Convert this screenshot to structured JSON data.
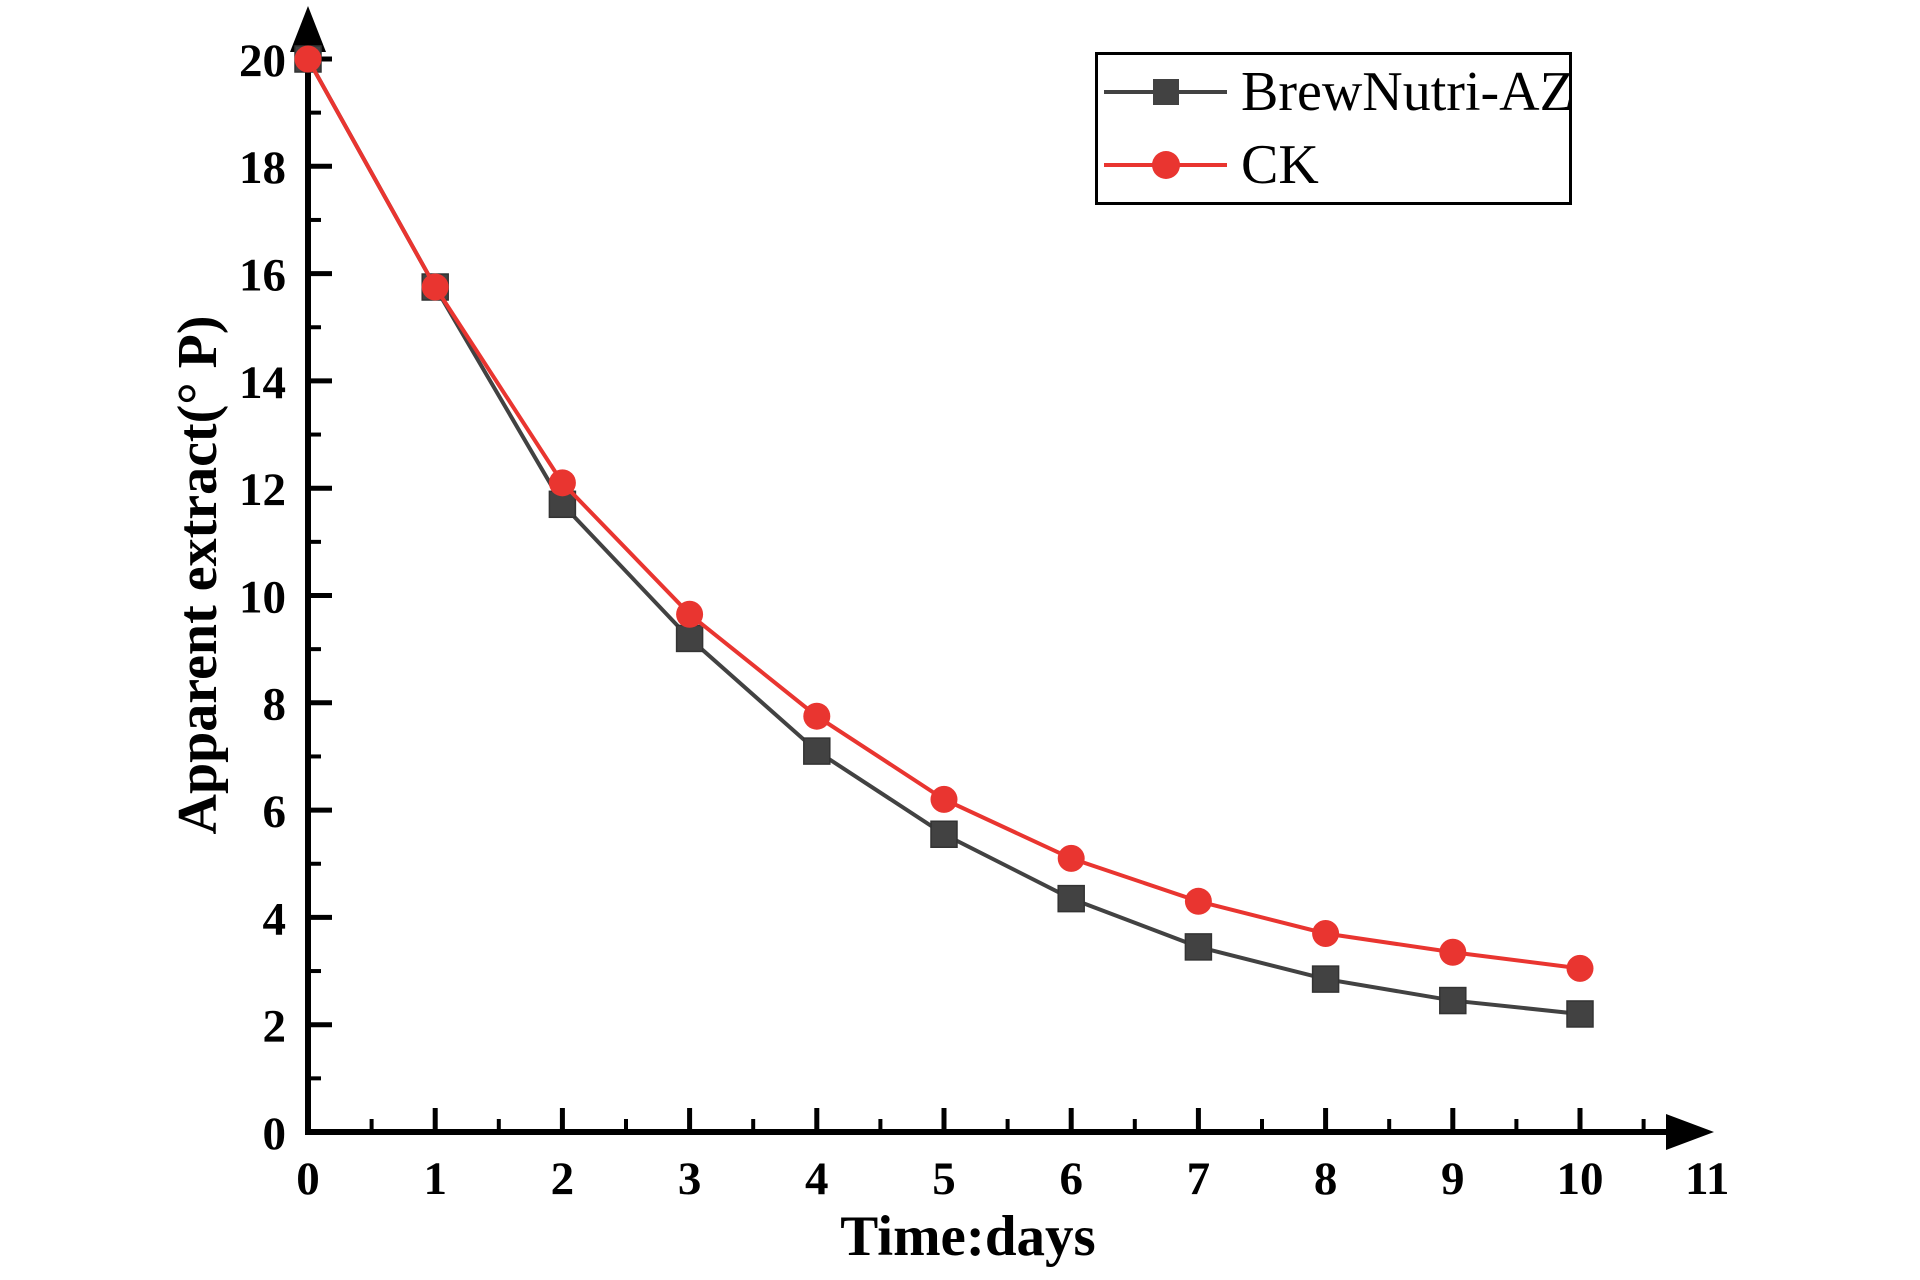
{
  "chart_data": {
    "type": "line",
    "title": "",
    "xlabel": "Time:days",
    "ylabel": "Apparent extract(° P)",
    "x": [
      0,
      1,
      2,
      3,
      4,
      5,
      6,
      7,
      8,
      9,
      10
    ],
    "series": [
      {
        "name": "BrewNutri-AZ",
        "marker": "square",
        "color": "#424242",
        "values": [
          20,
          15.75,
          11.7,
          9.2,
          7.1,
          5.55,
          4.35,
          3.45,
          2.85,
          2.45,
          2.2
        ]
      },
      {
        "name": "CK",
        "marker": "circle",
        "color": "#e93530",
        "values": [
          20,
          15.75,
          12.1,
          9.65,
          7.75,
          6.2,
          5.1,
          4.3,
          3.7,
          3.35,
          3.05
        ]
      }
    ],
    "xlim": [
      0,
      11
    ],
    "ylim": [
      0,
      20
    ],
    "x_ticks": [
      0,
      1,
      2,
      3,
      4,
      5,
      6,
      7,
      8,
      9,
      10,
      11
    ],
    "y_ticks": [
      0,
      2,
      4,
      6,
      8,
      10,
      12,
      14,
      16,
      18,
      20
    ],
    "x_minor_step": 0.5,
    "y_minor_step": 1,
    "grid": false,
    "legend_position": "top-right",
    "axis_color": "#000000",
    "background": "#ffffff"
  }
}
